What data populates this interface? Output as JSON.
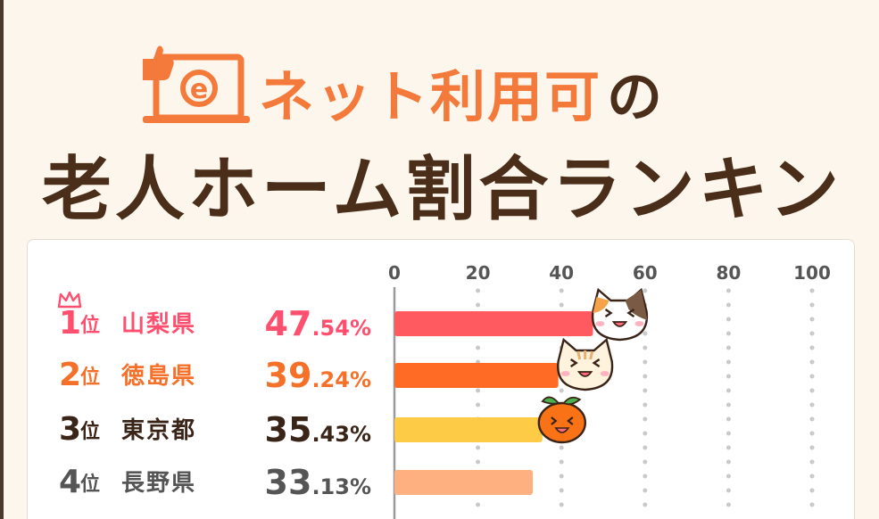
{
  "header": {
    "title_accent": "ネット利用可",
    "title_particle": "の",
    "title_main": "老人ホーム割合ランキング",
    "icon": "laptop-internet-icon"
  },
  "chart_data": {
    "type": "bar",
    "orientation": "horizontal",
    "categories": [
      "山梨県",
      "徳島県",
      "東京都",
      "長野県"
    ],
    "values": [
      47.54,
      39.24,
      35.43,
      33.13
    ],
    "ticks": [
      0,
      20,
      40,
      60,
      80,
      100
    ],
    "xlim": [
      0,
      100
    ],
    "grid": "dotted vertical",
    "title": "",
    "xlabel": "",
    "ylabel": "",
    "colors": [
      "#ff5a5f",
      "#ff6a24",
      "#fdcb45",
      "#ffb080"
    ]
  },
  "ranking": [
    {
      "rank": "1",
      "suffix": "位",
      "prefecture": "山梨県",
      "value_int": "47",
      "value_dec": ".54%",
      "color": "#ff4f6e",
      "mascot": "calico-cat-icon"
    },
    {
      "rank": "2",
      "suffix": "位",
      "prefecture": "徳島県",
      "value_int": "39",
      "value_dec": ".24%",
      "color": "#f5712a",
      "mascot": "tabby-cat-icon"
    },
    {
      "rank": "3",
      "suffix": "位",
      "prefecture": "東京都",
      "value_int": "35",
      "value_dec": ".43%",
      "color": "#3a2418",
      "mascot": "mandarin-orange-icon"
    },
    {
      "rank": "4",
      "suffix": "位",
      "prefecture": "長野県",
      "value_int": "33",
      "value_dec": ".13%",
      "color": "#555555",
      "mascot": ""
    }
  ],
  "top_rank_badge": "crown-icon"
}
